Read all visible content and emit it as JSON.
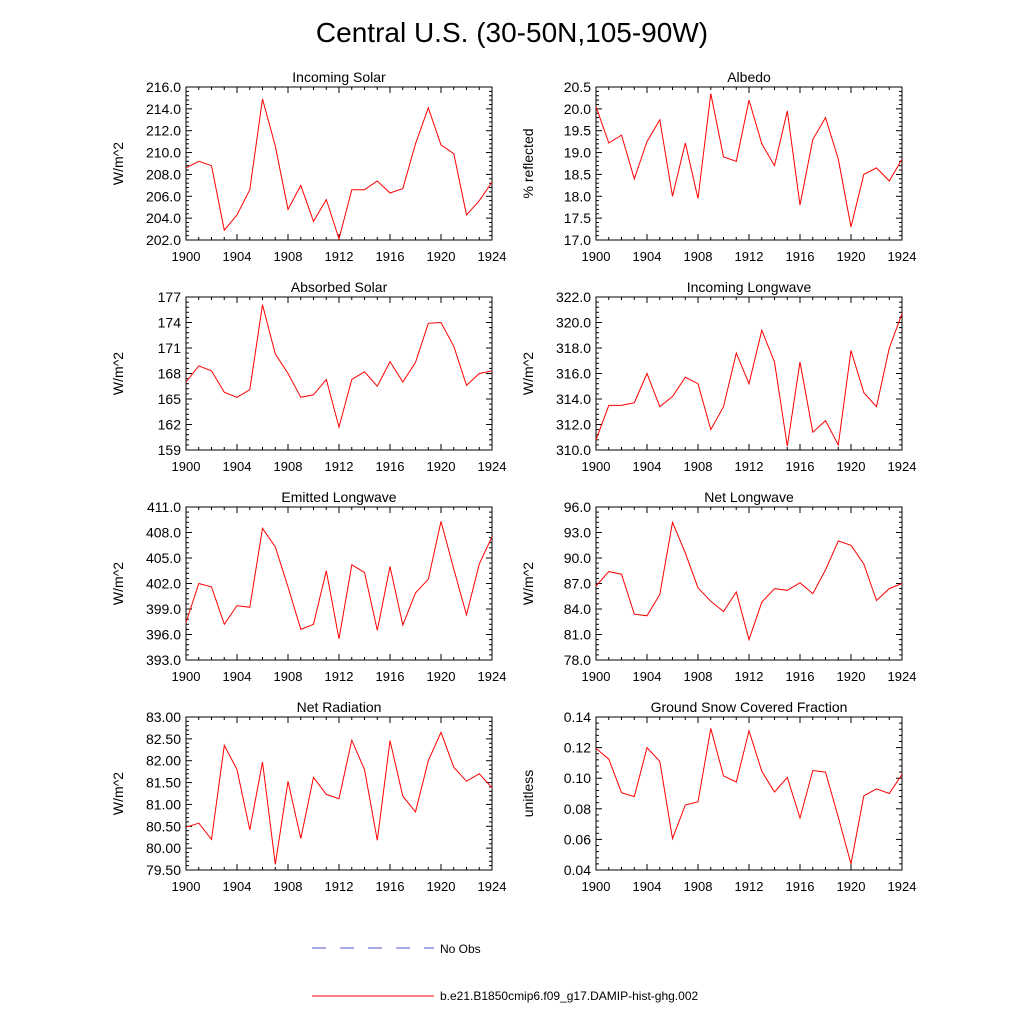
{
  "figure": {
    "title": "Central U.S. (30-50N,105-90W)",
    "legend": [
      {
        "label": "No Obs",
        "color": "#5555cc",
        "style": "dashed"
      },
      {
        "label": "b.e21.B1850cmip6.f09_g17.DAMIP-hist-ghg.002",
        "color": "#ff0000",
        "style": "solid"
      }
    ]
  },
  "chart_data": [
    {
      "type": "line",
      "title": "Incoming Solar",
      "ylabel": "W/m^2",
      "xlim": [
        1900,
        1924
      ],
      "ylim": [
        202,
        216
      ],
      "xticks": [
        "1900",
        "1904",
        "1908",
        "1912",
        "1916",
        "1920",
        "1924"
      ],
      "yticks": [
        "202.0",
        "204.0",
        "206.0",
        "208.0",
        "210.0",
        "212.0",
        "214.0",
        "216.0"
      ],
      "x": [
        1900,
        1901,
        1902,
        1903,
        1904,
        1905,
        1906,
        1907,
        1908,
        1909,
        1910,
        1911,
        1912,
        1913,
        1914,
        1915,
        1916,
        1917,
        1918,
        1919,
        1920,
        1921,
        1922,
        1923,
        1924
      ],
      "series": [
        {
          "name": "b.e21.B1850cmip6.f09_g17.DAMIP-hist-ghg.002",
          "color": "#ff0000",
          "values": [
            208.6,
            209.2,
            208.8,
            202.9,
            204.3,
            206.6,
            214.9,
            210.6,
            204.8,
            207.0,
            203.7,
            205.7,
            202.1,
            206.6,
            206.6,
            207.4,
            206.3,
            206.7,
            210.8,
            214.1,
            210.7,
            209.9,
            204.3,
            205.6,
            207.3
          ]
        }
      ]
    },
    {
      "type": "line",
      "title": "Albedo",
      "ylabel": "% reflected",
      "xlim": [
        1900,
        1924
      ],
      "ylim": [
        17,
        20.5
      ],
      "xticks": [
        "1900",
        "1904",
        "1908",
        "1912",
        "1916",
        "1920",
        "1924"
      ],
      "yticks": [
        "17.0",
        "17.5",
        "18.0",
        "18.5",
        "19.0",
        "19.5",
        "20.0",
        "20.5"
      ],
      "x": [
        1900,
        1901,
        1902,
        1903,
        1904,
        1905,
        1906,
        1907,
        1908,
        1909,
        1910,
        1911,
        1912,
        1913,
        1914,
        1915,
        1916,
        1917,
        1918,
        1919,
        1920,
        1921,
        1922,
        1923,
        1924
      ],
      "series": [
        {
          "name": "b.e21.B1850cmip6.f09_g17.DAMIP-hist-ghg.002",
          "color": "#ff0000",
          "values": [
            20.05,
            19.22,
            19.4,
            18.4,
            19.25,
            19.75,
            18.0,
            19.22,
            17.95,
            20.35,
            18.9,
            18.8,
            20.2,
            19.2,
            18.7,
            19.95,
            17.8,
            19.3,
            19.8,
            18.85,
            17.3,
            18.5,
            18.65,
            18.35,
            18.85
          ]
        }
      ]
    },
    {
      "type": "line",
      "title": "Absorbed Solar",
      "ylabel": "W/m^2",
      "xlim": [
        1900,
        1924
      ],
      "ylim": [
        159,
        177
      ],
      "xticks": [
        "1900",
        "1904",
        "1908",
        "1912",
        "1916",
        "1920",
        "1924"
      ],
      "yticks": [
        "159",
        "162",
        "165",
        "168",
        "171",
        "174",
        "177"
      ],
      "x": [
        1900,
        1901,
        1902,
        1903,
        1904,
        1905,
        1906,
        1907,
        1908,
        1909,
        1910,
        1911,
        1912,
        1913,
        1914,
        1915,
        1916,
        1917,
        1918,
        1919,
        1920,
        1921,
        1922,
        1923,
        1924
      ],
      "series": [
        {
          "name": "b.e21.B1850cmip6.f09_g17.DAMIP-hist-ghg.002",
          "color": "#ff0000",
          "values": [
            167.0,
            168.9,
            168.3,
            165.8,
            165.2,
            166.1,
            176.1,
            170.3,
            168.0,
            165.2,
            165.5,
            167.3,
            161.7,
            167.3,
            168.2,
            166.5,
            169.4,
            167.0,
            169.3,
            173.9,
            174.0,
            171.2,
            166.6,
            168.0,
            168.3
          ]
        }
      ]
    },
    {
      "type": "line",
      "title": "Incoming Longwave",
      "ylabel": "W/m^2",
      "xlim": [
        1900,
        1924
      ],
      "ylim": [
        310,
        322
      ],
      "xticks": [
        "1900",
        "1904",
        "1908",
        "1912",
        "1916",
        "1920",
        "1924"
      ],
      "yticks": [
        "310.0",
        "312.0",
        "314.0",
        "316.0",
        "318.0",
        "320.0",
        "322.0"
      ],
      "x": [
        1900,
        1901,
        1902,
        1903,
        1904,
        1905,
        1906,
        1907,
        1908,
        1909,
        1910,
        1911,
        1912,
        1913,
        1914,
        1915,
        1916,
        1917,
        1918,
        1919,
        1920,
        1921,
        1922,
        1923,
        1924
      ],
      "series": [
        {
          "name": "b.e21.B1850cmip6.f09_g17.DAMIP-hist-ghg.002",
          "color": "#ff0000",
          "values": [
            310.8,
            313.5,
            313.5,
            313.7,
            316.0,
            313.4,
            314.2,
            315.7,
            315.2,
            311.6,
            313.4,
            317.6,
            315.2,
            319.4,
            316.9,
            310.3,
            316.9,
            311.4,
            312.3,
            310.4,
            317.8,
            314.5,
            313.4,
            318.0,
            320.7
          ]
        }
      ]
    },
    {
      "type": "line",
      "title": "Emitted Longwave",
      "ylabel": "W/m^2",
      "xlim": [
        1900,
        1924
      ],
      "ylim": [
        393,
        411
      ],
      "xticks": [
        "1900",
        "1904",
        "1908",
        "1912",
        "1916",
        "1920",
        "1924"
      ],
      "yticks": [
        "393.0",
        "396.0",
        "399.0",
        "402.0",
        "405.0",
        "408.0",
        "411.0"
      ],
      "x": [
        1900,
        1901,
        1902,
        1903,
        1904,
        1905,
        1906,
        1907,
        1908,
        1909,
        1910,
        1911,
        1912,
        1913,
        1914,
        1915,
        1916,
        1917,
        1918,
        1919,
        1920,
        1921,
        1922,
        1923,
        1924
      ],
      "series": [
        {
          "name": "b.e21.B1850cmip6.f09_g17.DAMIP-hist-ghg.002",
          "color": "#ff0000",
          "values": [
            397.4,
            402.0,
            401.6,
            397.2,
            399.4,
            399.2,
            408.5,
            406.3,
            401.6,
            396.6,
            397.2,
            403.5,
            395.5,
            404.2,
            403.3,
            396.5,
            404.0,
            397.1,
            400.9,
            402.5,
            409.3,
            403.7,
            398.3,
            404.3,
            407.5
          ]
        }
      ]
    },
    {
      "type": "line",
      "title": "Net Longwave",
      "ylabel": "W/m^2",
      "xlim": [
        1900,
        1924
      ],
      "ylim": [
        78,
        96
      ],
      "xticks": [
        "1900",
        "1904",
        "1908",
        "1912",
        "1916",
        "1920",
        "1924"
      ],
      "yticks": [
        "78.0",
        "81.0",
        "84.0",
        "87.0",
        "90.0",
        "93.0",
        "96.0"
      ],
      "x": [
        1900,
        1901,
        1902,
        1903,
        1904,
        1905,
        1906,
        1907,
        1908,
        1909,
        1910,
        1911,
        1912,
        1913,
        1914,
        1915,
        1916,
        1917,
        1918,
        1919,
        1920,
        1921,
        1922,
        1923,
        1924
      ],
      "series": [
        {
          "name": "b.e21.B1850cmip6.f09_g17.DAMIP-hist-ghg.002",
          "color": "#ff0000",
          "values": [
            86.7,
            88.4,
            88.1,
            83.4,
            83.2,
            85.7,
            94.2,
            90.6,
            86.5,
            84.9,
            83.7,
            86.0,
            80.4,
            84.8,
            86.4,
            86.2,
            87.1,
            85.8,
            88.6,
            92.0,
            91.5,
            89.3,
            85.0,
            86.4,
            87.0
          ]
        }
      ]
    },
    {
      "type": "line",
      "title": "Net Radiation",
      "ylabel": "W/m^2",
      "xlim": [
        1900,
        1924
      ],
      "ylim": [
        79.5,
        83
      ],
      "xticks": [
        "1900",
        "1904",
        "1908",
        "1912",
        "1916",
        "1920",
        "1924"
      ],
      "yticks": [
        "79.50",
        "80.00",
        "80.50",
        "81.00",
        "81.50",
        "82.00",
        "82.50",
        "83.00"
      ],
      "x": [
        1900,
        1901,
        1902,
        1903,
        1904,
        1905,
        1906,
        1907,
        1908,
        1909,
        1910,
        1911,
        1912,
        1913,
        1914,
        1915,
        1916,
        1917,
        1918,
        1919,
        1920,
        1921,
        1922,
        1923,
        1924
      ],
      "series": [
        {
          "name": "b.e21.B1850cmip6.f09_g17.DAMIP-hist-ghg.002",
          "color": "#ff0000",
          "values": [
            80.48,
            80.57,
            80.2,
            82.35,
            81.8,
            80.42,
            81.97,
            79.63,
            81.53,
            80.22,
            81.62,
            81.23,
            81.13,
            82.47,
            81.8,
            80.18,
            82.46,
            81.19,
            80.83,
            82.0,
            82.65,
            81.85,
            81.53,
            81.7,
            81.38
          ]
        }
      ]
    },
    {
      "type": "line",
      "title": "Ground Snow Covered Fraction",
      "ylabel": "unitless",
      "xlim": [
        1900,
        1924
      ],
      "ylim": [
        0.04,
        0.14
      ],
      "xticks": [
        "1900",
        "1904",
        "1908",
        "1912",
        "1916",
        "1920",
        "1924"
      ],
      "yticks": [
        "0.04",
        "0.06",
        "0.08",
        "0.10",
        "0.12",
        "0.14"
      ],
      "x": [
        1900,
        1901,
        1902,
        1903,
        1904,
        1905,
        1906,
        1907,
        1908,
        1909,
        1910,
        1911,
        1912,
        1913,
        1914,
        1915,
        1916,
        1917,
        1918,
        1919,
        1920,
        1921,
        1922,
        1923,
        1924
      ],
      "series": [
        {
          "name": "b.e21.B1850cmip6.f09_g17.DAMIP-hist-ghg.002",
          "color": "#ff0000",
          "values": [
            0.1195,
            0.1125,
            0.0905,
            0.088,
            0.12,
            0.111,
            0.0605,
            0.0825,
            0.0845,
            0.1325,
            0.1015,
            0.0975,
            0.131,
            0.1045,
            0.091,
            0.1005,
            0.074,
            0.105,
            0.104,
            0.0745,
            0.044,
            0.0885,
            0.093,
            0.09,
            0.1025
          ]
        }
      ]
    }
  ]
}
